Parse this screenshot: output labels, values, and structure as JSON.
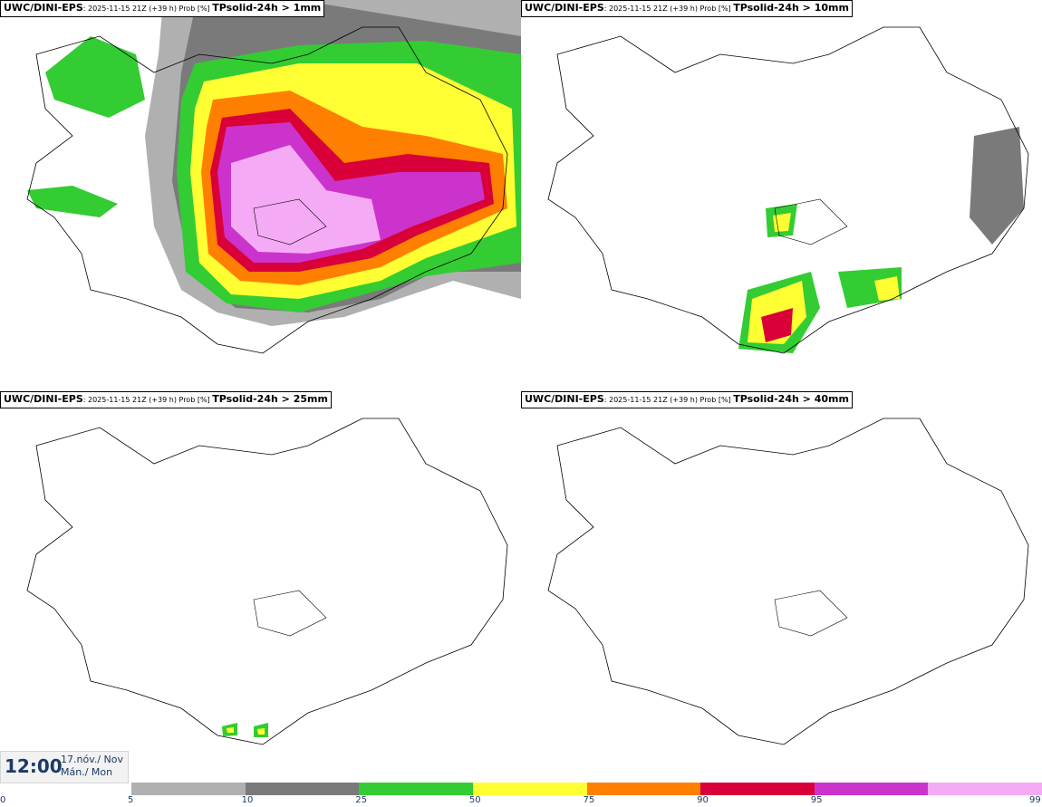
{
  "panels": [
    {
      "model": "UWC/DINI-EPS",
      "run": ": 2025-11-15 21Z (+39 h) Prob [%] ",
      "param": "TPsolid-24h > 1mm"
    },
    {
      "model": "UWC/DINI-EPS",
      "run": ": 2025-11-15 21Z (+39 h) Prob [%] ",
      "param": "TPsolid-24h > 10mm"
    },
    {
      "model": "UWC/DINI-EPS",
      "run": ": 2025-11-15 21Z (+39 h) Prob [%] ",
      "param": "TPsolid-24h > 25mm"
    },
    {
      "model": "UWC/DINI-EPS",
      "run": ": 2025-11-15 21Z (+39 h) Prob [%] ",
      "param": "TPsolid-24h > 40mm"
    }
  ],
  "valid_time": {
    "hour": "12:00",
    "date_line1": "17.nóv./ Nov",
    "date_line2": "Mán./ Mon"
  },
  "legend": {
    "ticks": [
      "0",
      "5",
      "10",
      "25",
      "50",
      "75",
      "90",
      "95",
      "99"
    ],
    "colors": [
      "#b0b0b0",
      "#7a7a7a",
      "#33cc33",
      "#ffff33",
      "#ff7f00",
      "#d9003a",
      "#cc33cc",
      "#f5aaf5"
    ]
  }
}
